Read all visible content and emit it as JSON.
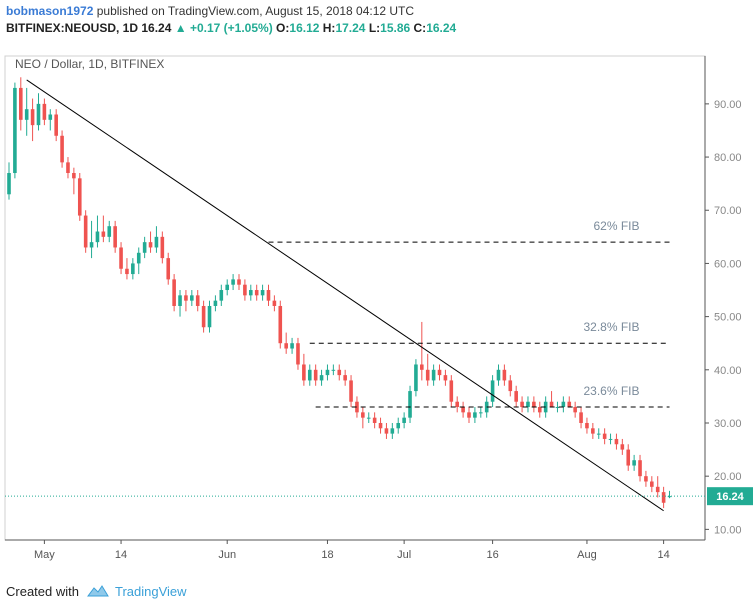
{
  "header": {
    "user": "bobmason1972",
    "published_text": "published on TradingView.com, August 15, 2018 04:12 UTC",
    "symbol": "BITFINEX:NEOUSD, 1D",
    "last": "16.24",
    "change": "+0.17 (+1.05%)",
    "o_label": "O:",
    "o_value": "16.12",
    "h_label": "H:",
    "h_value": "17.24",
    "l_label": "L:",
    "l_value": "15.86",
    "c_label": "C:",
    "c_value": "16.24"
  },
  "footer": {
    "created_with": "Created with",
    "brand": "TradingView"
  },
  "colors": {
    "up": "#22ab94",
    "down": "#ef5350",
    "axis": "#888888",
    "grid": "#000000",
    "price_line": "#22ab94",
    "fib_text": "#7a8a9a"
  },
  "chart_data": {
    "type": "candlestick",
    "title": "NEO / Dollar, 1D, BITFINEX",
    "y_axis": {
      "ticks": [
        10,
        20,
        30,
        40,
        50,
        60,
        70,
        80,
        90
      ],
      "tick_labels": [
        "10.00",
        "20.00",
        "30.00",
        "40.00",
        "50.00",
        "60.00",
        "70.00",
        "80.00",
        "90.00"
      ],
      "range": [
        8,
        99
      ]
    },
    "x_axis": {
      "ticks": [
        "2018-05-01",
        "2018-05-14",
        "2018-06-01",
        "2018-06-18",
        "2018-07-01",
        "2018-07-16",
        "2018-08-01",
        "2018-08-14"
      ],
      "tick_labels": [
        "May",
        "14",
        "Jun",
        "18",
        "Jul",
        "16",
        "Aug",
        "14"
      ],
      "range": [
        "2018-04-25",
        "2018-08-20"
      ]
    },
    "last_price": {
      "value": 16.24,
      "label": "16.24"
    },
    "fib_levels": [
      {
        "label": "62% FIB",
        "value": 64,
        "from": "2018-06-08",
        "to": "2018-08-15"
      },
      {
        "label": "32.8% FIB",
        "value": 45,
        "from": "2018-06-15",
        "to": "2018-08-15"
      },
      {
        "label": "23.6% FIB",
        "value": 33,
        "from": "2018-06-16",
        "to": "2018-08-15"
      }
    ],
    "trendline": {
      "from": [
        "2018-04-28",
        94.5
      ],
      "to": [
        "2018-08-14",
        13.5
      ]
    },
    "candles": [
      {
        "date": "2018-04-25",
        "o": 73,
        "h": 79,
        "l": 72,
        "c": 77
      },
      {
        "date": "2018-04-26",
        "o": 77,
        "h": 94,
        "l": 76,
        "c": 93
      },
      {
        "date": "2018-04-27",
        "o": 93,
        "h": 95,
        "l": 85,
        "c": 87
      },
      {
        "date": "2018-04-28",
        "o": 87,
        "h": 93,
        "l": 84,
        "c": 89
      },
      {
        "date": "2018-04-29",
        "o": 89,
        "h": 91,
        "l": 83,
        "c": 86
      },
      {
        "date": "2018-04-30",
        "o": 86,
        "h": 92,
        "l": 85,
        "c": 90
      },
      {
        "date": "2018-05-01",
        "o": 90,
        "h": 91,
        "l": 86,
        "c": 87
      },
      {
        "date": "2018-05-02",
        "o": 87,
        "h": 89,
        "l": 85,
        "c": 88
      },
      {
        "date": "2018-05-03",
        "o": 88,
        "h": 89,
        "l": 83,
        "c": 84
      },
      {
        "date": "2018-05-04",
        "o": 84,
        "h": 85,
        "l": 78,
        "c": 79
      },
      {
        "date": "2018-05-05",
        "o": 79,
        "h": 80,
        "l": 76,
        "c": 77
      },
      {
        "date": "2018-05-06",
        "o": 77,
        "h": 78,
        "l": 73,
        "c": 76
      },
      {
        "date": "2018-05-07",
        "o": 76,
        "h": 77,
        "l": 68,
        "c": 69
      },
      {
        "date": "2018-05-08",
        "o": 69,
        "h": 70,
        "l": 62,
        "c": 63
      },
      {
        "date": "2018-05-09",
        "o": 63,
        "h": 68,
        "l": 61,
        "c": 64
      },
      {
        "date": "2018-05-10",
        "o": 64,
        "h": 69,
        "l": 63,
        "c": 66
      },
      {
        "date": "2018-05-11",
        "o": 66,
        "h": 69,
        "l": 64,
        "c": 65
      },
      {
        "date": "2018-05-12",
        "o": 65,
        "h": 68,
        "l": 64,
        "c": 67
      },
      {
        "date": "2018-05-13",
        "o": 67,
        "h": 68,
        "l": 62,
        "c": 63
      },
      {
        "date": "2018-05-14",
        "o": 63,
        "h": 64,
        "l": 58,
        "c": 59
      },
      {
        "date": "2018-05-15",
        "o": 59,
        "h": 61,
        "l": 57,
        "c": 58
      },
      {
        "date": "2018-05-16",
        "o": 58,
        "h": 61,
        "l": 57,
        "c": 60
      },
      {
        "date": "2018-05-17",
        "o": 60,
        "h": 63,
        "l": 58,
        "c": 62
      },
      {
        "date": "2018-05-18",
        "o": 62,
        "h": 65,
        "l": 61,
        "c": 64
      },
      {
        "date": "2018-05-19",
        "o": 64,
        "h": 66,
        "l": 62,
        "c": 63
      },
      {
        "date": "2018-05-20",
        "o": 63,
        "h": 67,
        "l": 62,
        "c": 65
      },
      {
        "date": "2018-05-21",
        "o": 65,
        "h": 66,
        "l": 60,
        "c": 61
      },
      {
        "date": "2018-05-22",
        "o": 61,
        "h": 62,
        "l": 56,
        "c": 57
      },
      {
        "date": "2018-05-23",
        "o": 57,
        "h": 58,
        "l": 51,
        "c": 52
      },
      {
        "date": "2018-05-24",
        "o": 52,
        "h": 55,
        "l": 50,
        "c": 54
      },
      {
        "date": "2018-05-25",
        "o": 54,
        "h": 55,
        "l": 51,
        "c": 53
      },
      {
        "date": "2018-05-26",
        "o": 53,
        "h": 55,
        "l": 52,
        "c": 54
      },
      {
        "date": "2018-05-27",
        "o": 54,
        "h": 55,
        "l": 51,
        "c": 52
      },
      {
        "date": "2018-05-28",
        "o": 52,
        "h": 53,
        "l": 47,
        "c": 48
      },
      {
        "date": "2018-05-29",
        "o": 48,
        "h": 53,
        "l": 47,
        "c": 52
      },
      {
        "date": "2018-05-30",
        "o": 52,
        "h": 54,
        "l": 51,
        "c": 53
      },
      {
        "date": "2018-05-31",
        "o": 53,
        "h": 56,
        "l": 52,
        "c": 55
      },
      {
        "date": "2018-06-01",
        "o": 55,
        "h": 57,
        "l": 54,
        "c": 56
      },
      {
        "date": "2018-06-02",
        "o": 56,
        "h": 58,
        "l": 55,
        "c": 57
      },
      {
        "date": "2018-06-03",
        "o": 57,
        "h": 58,
        "l": 55,
        "c": 56
      },
      {
        "date": "2018-06-04",
        "o": 56,
        "h": 57,
        "l": 53,
        "c": 54
      },
      {
        "date": "2018-06-05",
        "o": 54,
        "h": 56,
        "l": 53,
        "c": 55
      },
      {
        "date": "2018-06-06",
        "o": 55,
        "h": 56,
        "l": 53,
        "c": 54
      },
      {
        "date": "2018-06-07",
        "o": 54,
        "h": 56,
        "l": 53,
        "c": 55
      },
      {
        "date": "2018-06-08",
        "o": 55,
        "h": 56,
        "l": 52,
        "c": 53
      },
      {
        "date": "2018-06-09",
        "o": 53,
        "h": 54,
        "l": 51,
        "c": 52
      },
      {
        "date": "2018-06-10",
        "o": 52,
        "h": 53,
        "l": 44,
        "c": 45
      },
      {
        "date": "2018-06-11",
        "o": 45,
        "h": 47,
        "l": 43,
        "c": 44
      },
      {
        "date": "2018-06-12",
        "o": 44,
        "h": 46,
        "l": 43,
        "c": 45
      },
      {
        "date": "2018-06-13",
        "o": 45,
        "h": 46,
        "l": 40,
        "c": 41
      },
      {
        "date": "2018-06-14",
        "o": 41,
        "h": 43,
        "l": 37,
        "c": 38
      },
      {
        "date": "2018-06-15",
        "o": 38,
        "h": 41,
        "l": 37,
        "c": 40
      },
      {
        "date": "2018-06-16",
        "o": 40,
        "h": 41,
        "l": 37,
        "c": 38
      },
      {
        "date": "2018-06-17",
        "o": 38,
        "h": 40,
        "l": 37,
        "c": 39
      },
      {
        "date": "2018-06-18",
        "o": 39,
        "h": 41,
        "l": 38,
        "c": 40
      },
      {
        "date": "2018-06-19",
        "o": 40,
        "h": 41,
        "l": 39,
        "c": 40
      },
      {
        "date": "2018-06-20",
        "o": 40,
        "h": 41,
        "l": 38,
        "c": 39
      },
      {
        "date": "2018-06-21",
        "o": 39,
        "h": 40,
        "l": 37,
        "c": 38
      },
      {
        "date": "2018-06-22",
        "o": 38,
        "h": 39,
        "l": 33,
        "c": 34
      },
      {
        "date": "2018-06-23",
        "o": 34,
        "h": 35,
        "l": 31,
        "c": 32
      },
      {
        "date": "2018-06-24",
        "o": 32,
        "h": 33,
        "l": 29,
        "c": 31
      },
      {
        "date": "2018-06-25",
        "o": 31,
        "h": 32,
        "l": 30,
        "c": 31
      },
      {
        "date": "2018-06-26",
        "o": 31,
        "h": 32,
        "l": 29,
        "c": 30
      },
      {
        "date": "2018-06-27",
        "o": 30,
        "h": 31,
        "l": 28,
        "c": 29
      },
      {
        "date": "2018-06-28",
        "o": 29,
        "h": 30,
        "l": 27,
        "c": 28
      },
      {
        "date": "2018-06-29",
        "o": 28,
        "h": 30,
        "l": 27,
        "c": 29
      },
      {
        "date": "2018-06-30",
        "o": 29,
        "h": 31,
        "l": 28,
        "c": 30
      },
      {
        "date": "2018-07-01",
        "o": 30,
        "h": 32,
        "l": 29,
        "c": 31
      },
      {
        "date": "2018-07-02",
        "o": 31,
        "h": 37,
        "l": 30,
        "c": 36
      },
      {
        "date": "2018-07-03",
        "o": 36,
        "h": 42,
        "l": 35,
        "c": 41
      },
      {
        "date": "2018-07-04",
        "o": 41,
        "h": 49,
        "l": 38,
        "c": 40
      },
      {
        "date": "2018-07-05",
        "o": 40,
        "h": 43,
        "l": 37,
        "c": 38
      },
      {
        "date": "2018-07-06",
        "o": 38,
        "h": 41,
        "l": 37,
        "c": 40
      },
      {
        "date": "2018-07-07",
        "o": 40,
        "h": 41,
        "l": 38,
        "c": 39
      },
      {
        "date": "2018-07-08",
        "o": 39,
        "h": 40,
        "l": 37,
        "c": 38
      },
      {
        "date": "2018-07-09",
        "o": 38,
        "h": 39,
        "l": 33,
        "c": 34
      },
      {
        "date": "2018-07-10",
        "o": 34,
        "h": 35,
        "l": 32,
        "c": 33
      },
      {
        "date": "2018-07-11",
        "o": 33,
        "h": 34,
        "l": 31,
        "c": 32
      },
      {
        "date": "2018-07-12",
        "o": 32,
        "h": 33,
        "l": 30,
        "c": 31
      },
      {
        "date": "2018-07-13",
        "o": 31,
        "h": 33,
        "l": 30,
        "c": 32
      },
      {
        "date": "2018-07-14",
        "o": 32,
        "h": 33,
        "l": 31,
        "c": 32
      },
      {
        "date": "2018-07-15",
        "o": 32,
        "h": 35,
        "l": 31,
        "c": 34
      },
      {
        "date": "2018-07-16",
        "o": 34,
        "h": 39,
        "l": 33,
        "c": 38
      },
      {
        "date": "2018-07-17",
        "o": 38,
        "h": 41,
        "l": 37,
        "c": 40
      },
      {
        "date": "2018-07-18",
        "o": 40,
        "h": 41,
        "l": 37,
        "c": 38
      },
      {
        "date": "2018-07-19",
        "o": 38,
        "h": 39,
        "l": 35,
        "c": 36
      },
      {
        "date": "2018-07-20",
        "o": 36,
        "h": 37,
        "l": 33,
        "c": 34
      },
      {
        "date": "2018-07-21",
        "o": 34,
        "h": 35,
        "l": 32,
        "c": 33
      },
      {
        "date": "2018-07-22",
        "o": 33,
        "h": 35,
        "l": 32,
        "c": 34
      },
      {
        "date": "2018-07-23",
        "o": 34,
        "h": 35,
        "l": 32,
        "c": 33
      },
      {
        "date": "2018-07-24",
        "o": 33,
        "h": 34,
        "l": 31,
        "c": 32
      },
      {
        "date": "2018-07-25",
        "o": 32,
        "h": 35,
        "l": 31,
        "c": 34
      },
      {
        "date": "2018-07-26",
        "o": 34,
        "h": 36,
        "l": 33,
        "c": 33
      },
      {
        "date": "2018-07-27",
        "o": 33,
        "h": 34,
        "l": 32,
        "c": 33
      },
      {
        "date": "2018-07-28",
        "o": 33,
        "h": 35,
        "l": 32,
        "c": 34
      },
      {
        "date": "2018-07-29",
        "o": 34,
        "h": 35,
        "l": 33,
        "c": 33
      },
      {
        "date": "2018-07-30",
        "o": 33,
        "h": 34,
        "l": 31,
        "c": 32
      },
      {
        "date": "2018-07-31",
        "o": 32,
        "h": 33,
        "l": 29,
        "c": 30
      },
      {
        "date": "2018-08-01",
        "o": 30,
        "h": 31,
        "l": 28,
        "c": 29
      },
      {
        "date": "2018-08-02",
        "o": 29,
        "h": 30,
        "l": 27,
        "c": 28
      },
      {
        "date": "2018-08-03",
        "o": 28,
        "h": 29,
        "l": 27,
        "c": 28
      },
      {
        "date": "2018-08-04",
        "o": 28,
        "h": 29,
        "l": 26,
        "c": 27
      },
      {
        "date": "2018-08-05",
        "o": 27,
        "h": 28,
        "l": 26,
        "c": 27
      },
      {
        "date": "2018-08-06",
        "o": 27,
        "h": 28,
        "l": 25,
        "c": 26
      },
      {
        "date": "2018-08-07",
        "o": 26,
        "h": 27,
        "l": 24,
        "c": 25
      },
      {
        "date": "2018-08-08",
        "o": 25,
        "h": 26,
        "l": 21,
        "c": 22
      },
      {
        "date": "2018-08-09",
        "o": 22,
        "h": 24,
        "l": 21,
        "c": 23
      },
      {
        "date": "2018-08-10",
        "o": 23,
        "h": 24,
        "l": 19,
        "c": 20
      },
      {
        "date": "2018-08-11",
        "o": 20,
        "h": 21,
        "l": 18,
        "c": 19
      },
      {
        "date": "2018-08-12",
        "o": 19,
        "h": 20,
        "l": 17,
        "c": 18
      },
      {
        "date": "2018-08-13",
        "o": 18,
        "h": 20,
        "l": 16,
        "c": 17
      },
      {
        "date": "2018-08-14",
        "o": 17,
        "h": 18,
        "l": 14,
        "c": 15
      },
      {
        "date": "2018-08-15",
        "o": 16.12,
        "h": 17.24,
        "l": 15.86,
        "c": 16.24
      }
    ]
  }
}
